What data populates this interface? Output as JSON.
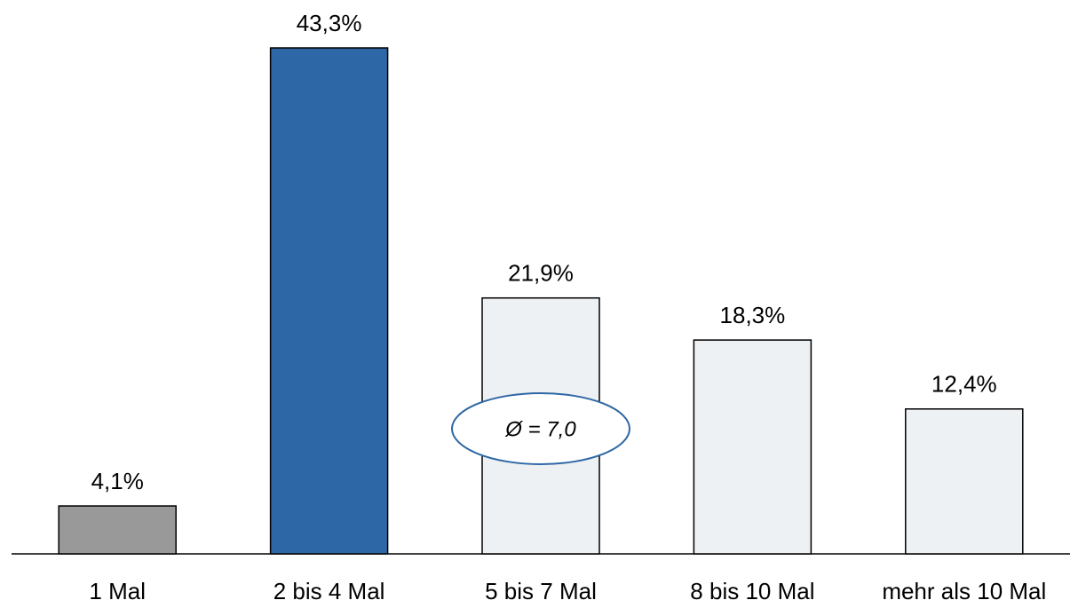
{
  "chart_data": {
    "type": "bar",
    "categories": [
      "1 Mal",
      "2 bis 4 Mal",
      "5 bis 7 Mal",
      "8 bis 10 Mal",
      "mehr als 10 Mal"
    ],
    "values": [
      4.1,
      43.3,
      21.9,
      18.3,
      12.4
    ],
    "value_labels": [
      "4,1%",
      "43,3%",
      "21,9%",
      "18,3%",
      "12,4%"
    ],
    "colors": [
      "#999999",
      "#2e67a5",
      "#eef1f3",
      "#eef1f3",
      "#eef1f3"
    ],
    "annotation": "Ø = 7,0"
  }
}
